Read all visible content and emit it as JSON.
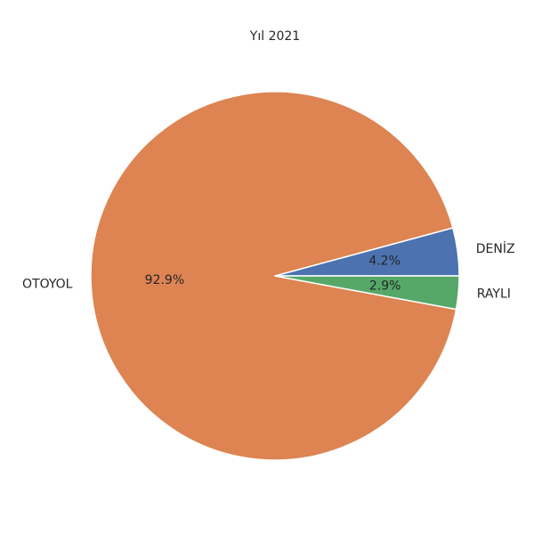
{
  "chart_data": {
    "type": "pie",
    "title": "Yıl 2021",
    "start_angle_deg": 0,
    "counterclock": true,
    "slices": [
      {
        "label": "DENİZ",
        "value": 4.2,
        "pct_label": "4.2%",
        "color": "#4c72b0"
      },
      {
        "label": "OTOYOL",
        "value": 92.9,
        "pct_label": "92.9%",
        "color": "#dd8452"
      },
      {
        "label": "RAYLI",
        "value": 2.9,
        "pct_label": "2.9%",
        "color": "#55a868"
      }
    ]
  }
}
